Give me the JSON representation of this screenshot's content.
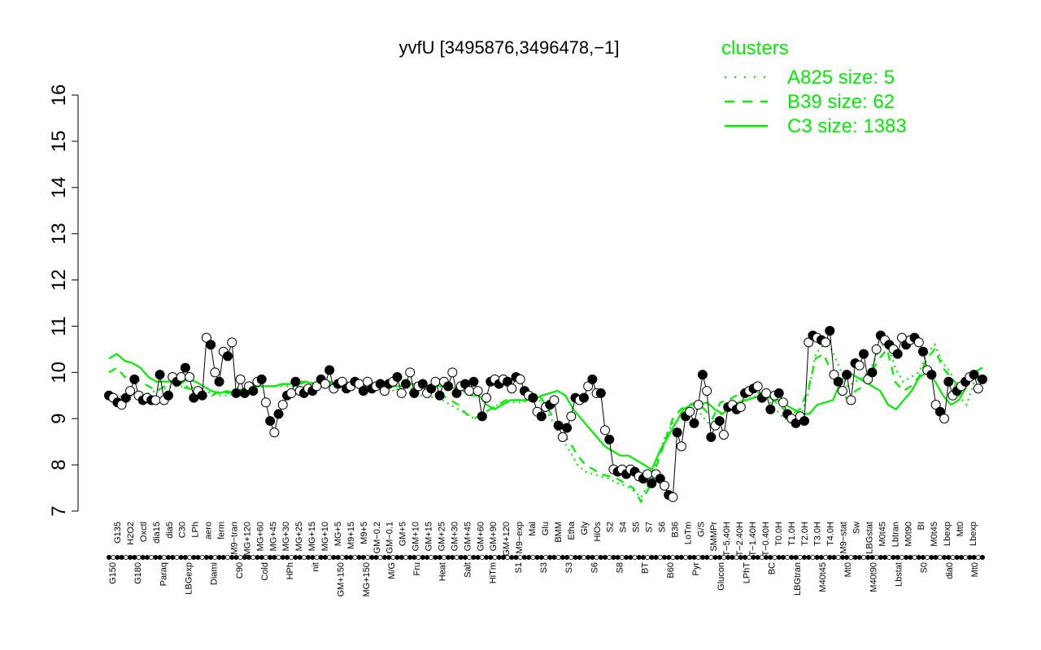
{
  "chart_data": {
    "type": "line",
    "title": "yvfU [3495876,3496478,−1]",
    "xlabel": "",
    "ylabel": "",
    "ylim": [
      7,
      16
    ],
    "yticks": [
      7,
      8,
      9,
      10,
      11,
      12,
      13,
      14,
      15,
      16
    ],
    "grid": false,
    "legend_position": "top-right",
    "legend": {
      "title": "clusters",
      "color": "#00ee00",
      "entries": [
        {
          "label": "A825 size: 5",
          "style": "dotted"
        },
        {
          "label": "B39 size: 62",
          "style": "dashed"
        },
        {
          "label": "C3 size: 1383",
          "style": "solid"
        }
      ]
    },
    "x_labels_top": [
      "G135",
      "H2O2",
      "Oxctl",
      "dia15",
      "dia5",
      "C30",
      "LPh",
      "aero",
      "ferm",
      "M9−tran",
      "MG+120",
      "MG+60",
      "MG+45",
      "MG+30",
      "MG+25",
      "MG+15",
      "MG+10",
      "MG+5",
      "M9+15",
      "M9+5",
      "GM−0.2",
      "GM−0.1",
      "GM+5",
      "GM+10",
      "GM+15",
      "GM+25",
      "GM+30",
      "GM+45",
      "GM+60",
      "GM+90",
      "GM+120",
      "M9−exp",
      "Mal",
      "Glu",
      "BMM",
      "Etha",
      "Gly",
      "HiOs",
      "S2",
      "S4",
      "S5",
      "S7",
      "S6",
      "B36",
      "LoTm",
      "G/S",
      "SMMPr",
      "T−5.40H",
      "T−2.40H",
      "T−1.40H",
      "T−0.40H",
      "T0.0H",
      "T1.0H",
      "T2.0H",
      "T3.0H",
      "T4.0H",
      "M9−stat",
      "Sw",
      "LBGstat",
      "M0t45",
      "Lbtran",
      "M0t90",
      "BI",
      "M0t45",
      "Lbexp",
      "Mt0",
      "Lbexp"
    ],
    "x_labels_bottom": [
      "G150",
      "G180",
      "Paraq",
      "LBGexp",
      "Diami",
      "C90",
      "Cold",
      "HPh",
      "nit",
      "GM+150",
      "MG+150",
      "M/G",
      "Fru",
      "Heat",
      "Salt",
      "HiTm",
      "S1",
      "S3",
      "S3",
      "S6",
      "S8",
      "BT",
      "B60",
      "Pyr",
      "Glucon",
      "LPhT",
      "BC",
      "LBGtran",
      "M40t45",
      "Mt0",
      "M40t90",
      "Lbstat",
      "S0",
      "dia0",
      "Mt0"
    ],
    "series": [
      {
        "name": "C3 size: 1383",
        "style": "solid",
        "color": "#00ee00",
        "values": [
          10.3,
          10.4,
          10.25,
          10.2,
          10.1,
          9.9,
          9.8,
          9.8,
          9.8,
          9.75,
          9.85,
          9.8,
          9.7,
          9.6,
          9.55,
          9.6,
          9.55,
          9.6,
          9.65,
          9.7,
          9.7,
          9.7,
          9.75,
          9.75,
          9.8,
          9.8,
          9.75,
          9.8,
          9.8,
          9.75,
          9.8,
          9.75,
          9.7,
          9.7,
          9.75,
          9.75,
          9.7,
          9.7,
          9.75,
          9.75,
          9.7,
          9.7,
          9.7,
          9.7,
          9.65,
          9.6,
          9.5,
          9.5,
          9.3,
          9.2,
          9.3,
          9.4,
          9.4,
          9.4,
          9.4,
          9.5,
          9.55,
          9.6,
          9.5,
          9.2,
          9.0,
          8.8,
          8.6,
          8.4,
          8.3,
          8.2,
          8.2,
          8.1,
          8.0,
          7.9,
          8.3,
          8.6,
          8.9,
          9.2,
          9.3,
          9.3,
          9.35,
          9.2,
          9.1,
          9.3,
          9.35,
          9.4,
          9.45,
          9.5,
          9.45,
          9.4,
          9.3,
          9.2,
          9.1,
          9.1,
          9.3,
          9.35,
          9.4,
          9.8,
          10.0,
          9.9,
          9.8,
          9.7,
          9.6,
          9.3,
          9.2,
          9.4,
          9.6,
          9.9,
          10.0,
          9.8,
          9.5,
          9.3,
          9.4,
          9.7,
          10.0,
          10.1
        ]
      },
      {
        "name": "B39 size: 62",
        "style": "dashed",
        "color": "#00ee00",
        "values": [
          10.0,
          10.1,
          9.9,
          9.9,
          9.8,
          9.7,
          9.6,
          9.7,
          9.8,
          9.7,
          9.65,
          9.6,
          9.55,
          9.5,
          9.6,
          9.55,
          9.6,
          9.65,
          9.7,
          9.7,
          9.7,
          9.7,
          9.75,
          9.75,
          9.75,
          9.8,
          9.75,
          9.75,
          9.75,
          9.7,
          9.75,
          9.7,
          9.65,
          9.65,
          9.7,
          9.7,
          9.65,
          9.6,
          9.65,
          9.6,
          9.6,
          9.55,
          9.5,
          9.4,
          9.3,
          9.1,
          9.0,
          9.1,
          9.2,
          9.3,
          9.4,
          9.4,
          9.4,
          9.45,
          9.55,
          9.3,
          9.0,
          8.7,
          8.5,
          8.2,
          8.0,
          7.9,
          7.8,
          7.75,
          7.7,
          7.6,
          7.5,
          7.2,
          7.5,
          8.0,
          8.5,
          9.0,
          9.2,
          9.3,
          9.35,
          9.2,
          9.0,
          9.35,
          9.4,
          9.5,
          9.55,
          9.6,
          9.55,
          9.5,
          9.35,
          9.2,
          9.1,
          9.2,
          9.6,
          10.3,
          10.4,
          10.0,
          9.7,
          9.4,
          9.6,
          9.7,
          10.0,
          10.3,
          10.5,
          9.8,
          9.6,
          9.7,
          9.9,
          10.3,
          10.5,
          10.1,
          9.9,
          9.7,
          9.8,
          10.0,
          10.1
        ]
      },
      {
        "name": "A825 size: 5",
        "style": "dotted",
        "color": "#00ee00",
        "values": [
          9.55,
          9.5,
          9.45,
          9.5,
          9.5,
          9.55,
          9.6,
          9.65,
          9.7,
          9.7,
          9.7,
          9.65,
          9.6,
          9.55,
          9.5,
          9.5,
          9.55,
          9.6,
          9.65,
          9.7,
          9.7,
          9.7,
          9.7,
          9.7,
          9.65,
          9.7,
          9.7,
          9.7,
          9.7,
          9.7,
          9.7,
          9.65,
          9.6,
          9.6,
          9.65,
          9.65,
          9.6,
          9.55,
          9.55,
          9.5,
          9.5,
          9.45,
          9.4,
          9.3,
          9.2,
          9.1,
          9.0,
          9.1,
          9.2,
          9.3,
          9.35,
          9.35,
          9.35,
          9.4,
          9.45,
          9.2,
          8.9,
          8.6,
          8.3,
          8.0,
          7.85,
          7.8,
          7.75,
          7.7,
          7.6,
          7.55,
          7.45,
          7.3,
          7.6,
          8.1,
          8.6,
          8.9,
          9.0,
          9.15,
          9.2,
          9.0,
          8.8,
          9.1,
          9.2,
          9.3,
          9.4,
          9.5,
          9.45,
          9.4,
          9.2,
          9.0,
          8.95,
          9.0,
          9.5,
          10.4,
          10.6,
          10.5,
          10.1,
          9.7,
          9.8,
          9.9,
          10.1,
          10.5,
          10.7,
          10.1,
          9.8,
          9.9,
          10.0,
          10.4,
          10.6,
          10.2,
          10.0,
          9.5,
          9.3,
          9.8,
          9.9
        ]
      }
    ],
    "points": [
      {
        "x": 0,
        "y": 9.5
      },
      {
        "x": 1,
        "y": 9.45
      },
      {
        "x": 2,
        "y": 9.35
      },
      {
        "x": 3,
        "y": 9.3
      },
      {
        "x": 4,
        "y": 9.45
      },
      {
        "x": 5,
        "y": 9.6
      },
      {
        "x": 6,
        "y": 9.85
      },
      {
        "x": 7,
        "y": 9.5
      },
      {
        "x": 8,
        "y": 9.4
      },
      {
        "x": 9,
        "y": 9.45
      },
      {
        "x": 10,
        "y": 9.4
      },
      {
        "x": 11,
        "y": 9.4
      },
      {
        "x": 12,
        "y": 9.95
      },
      {
        "x": 13,
        "y": 9.4
      },
      {
        "x": 14,
        "y": 9.5
      },
      {
        "x": 15,
        "y": 9.9
      },
      {
        "x": 16,
        "y": 9.8
      },
      {
        "x": 17,
        "y": 9.9
      },
      {
        "x": 18,
        "y": 10.1
      },
      {
        "x": 19,
        "y": 9.9
      },
      {
        "x": 20,
        "y": 9.45
      },
      {
        "x": 21,
        "y": 9.6
      },
      {
        "x": 22,
        "y": 9.5
      },
      {
        "x": 23,
        "y": 10.75
      },
      {
        "x": 24,
        "y": 10.6
      },
      {
        "x": 25,
        "y": 10.0
      },
      {
        "x": 26,
        "y": 9.8
      },
      {
        "x": 27,
        "y": 10.45
      },
      {
        "x": 28,
        "y": 10.35
      },
      {
        "x": 29,
        "y": 10.65
      },
      {
        "x": 30,
        "y": 9.55
      },
      {
        "x": 31,
        "y": 9.85
      },
      {
        "x": 32,
        "y": 9.55
      },
      {
        "x": 33,
        "y": 9.7
      },
      {
        "x": 34,
        "y": 9.6
      },
      {
        "x": 35,
        "y": 9.8
      },
      {
        "x": 36,
        "y": 9.85
      },
      {
        "x": 37,
        "y": 9.35
      },
      {
        "x": 38,
        "y": 8.95
      },
      {
        "x": 39,
        "y": 8.7
      },
      {
        "x": 40,
        "y": 9.1
      },
      {
        "x": 41,
        "y": 9.3
      },
      {
        "x": 42,
        "y": 9.5
      },
      {
        "x": 43,
        "y": 9.55
      },
      {
        "x": 44,
        "y": 9.8
      },
      {
        "x": 45,
        "y": 9.6
      },
      {
        "x": 46,
        "y": 9.55
      },
      {
        "x": 47,
        "y": 9.65
      },
      {
        "x": 48,
        "y": 9.6
      },
      {
        "x": 49,
        "y": 9.7
      },
      {
        "x": 50,
        "y": 9.85
      },
      {
        "x": 51,
        "y": 9.75
      },
      {
        "x": 52,
        "y": 10.05
      },
      {
        "x": 53,
        "y": 9.65
      },
      {
        "x": 54,
        "y": 9.75
      },
      {
        "x": 55,
        "y": 9.8
      },
      {
        "x": 56,
        "y": 9.65
      },
      {
        "x": 57,
        "y": 9.7
      },
      {
        "x": 58,
        "y": 9.8
      },
      {
        "x": 59,
        "y": 9.75
      },
      {
        "x": 60,
        "y": 9.6
      },
      {
        "x": 61,
        "y": 9.8
      },
      {
        "x": 62,
        "y": 9.65
      },
      {
        "x": 63,
        "y": 9.7
      },
      {
        "x": 64,
        "y": 9.75
      },
      {
        "x": 65,
        "y": 9.6
      },
      {
        "x": 66,
        "y": 9.75
      },
      {
        "x": 67,
        "y": 9.8
      },
      {
        "x": 68,
        "y": 9.9
      },
      {
        "x": 69,
        "y": 9.55
      },
      {
        "x": 70,
        "y": 9.75
      },
      {
        "x": 71,
        "y": 10.0
      },
      {
        "x": 72,
        "y": 9.55
      },
      {
        "x": 73,
        "y": 9.7
      },
      {
        "x": 74,
        "y": 9.75
      },
      {
        "x": 75,
        "y": 9.55
      },
      {
        "x": 76,
        "y": 9.65
      },
      {
        "x": 77,
        "y": 9.8
      },
      {
        "x": 78,
        "y": 9.5
      },
      {
        "x": 79,
        "y": 9.8
      },
      {
        "x": 80,
        "y": 9.7
      },
      {
        "x": 81,
        "y": 10.0
      },
      {
        "x": 82,
        "y": 9.55
      },
      {
        "x": 83,
        "y": 9.7
      },
      {
        "x": 84,
        "y": 9.75
      },
      {
        "x": 85,
        "y": 9.6
      },
      {
        "x": 86,
        "y": 9.8
      },
      {
        "x": 87,
        "y": 9.6
      },
      {
        "x": 88,
        "y": 9.05
      },
      {
        "x": 89,
        "y": 9.45
      },
      {
        "x": 90,
        "y": 9.8
      },
      {
        "x": 91,
        "y": 9.85
      },
      {
        "x": 92,
        "y": 9.75
      },
      {
        "x": 93,
        "y": 9.85
      },
      {
        "x": 94,
        "y": 9.8
      },
      {
        "x": 95,
        "y": 9.65
      },
      {
        "x": 96,
        "y": 9.9
      },
      {
        "x": 97,
        "y": 9.85
      },
      {
        "x": 98,
        "y": 9.6
      },
      {
        "x": 99,
        "y": 9.5
      },
      {
        "x": 100,
        "y": 9.45
      },
      {
        "x": 101,
        "y": 9.15
      },
      {
        "x": 102,
        "y": 9.05
      },
      {
        "x": 103,
        "y": 9.25
      },
      {
        "x": 104,
        "y": 9.3
      },
      {
        "x": 105,
        "y": 9.4
      },
      {
        "x": 106,
        "y": 8.85
      },
      {
        "x": 107,
        "y": 8.6
      },
      {
        "x": 108,
        "y": 8.8
      },
      {
        "x": 109,
        "y": 9.05
      },
      {
        "x": 110,
        "y": 9.45
      },
      {
        "x": 111,
        "y": 9.4
      },
      {
        "x": 112,
        "y": 9.45
      },
      {
        "x": 113,
        "y": 9.7
      },
      {
        "x": 114,
        "y": 9.85
      },
      {
        "x": 115,
        "y": 9.55
      },
      {
        "x": 116,
        "y": 9.55
      },
      {
        "x": 117,
        "y": 8.75
      },
      {
        "x": 118,
        "y": 8.55
      },
      {
        "x": 119,
        "y": 7.9
      },
      {
        "x": 120,
        "y": 7.85
      },
      {
        "x": 121,
        "y": 7.9
      },
      {
        "x": 122,
        "y": 7.8
      },
      {
        "x": 123,
        "y": 7.9
      },
      {
        "x": 124,
        "y": 7.85
      },
      {
        "x": 125,
        "y": 7.75
      },
      {
        "x": 126,
        "y": 7.7
      },
      {
        "x": 127,
        "y": 7.8
      },
      {
        "x": 128,
        "y": 7.6
      },
      {
        "x": 129,
        "y": 7.8
      },
      {
        "x": 130,
        "y": 7.7
      },
      {
        "x": 131,
        "y": 7.55
      },
      {
        "x": 132,
        "y": 7.35
      },
      {
        "x": 133,
        "y": 7.3
      },
      {
        "x": 134,
        "y": 8.7
      },
      {
        "x": 135,
        "y": 8.4
      },
      {
        "x": 136,
        "y": 9.05
      },
      {
        "x": 137,
        "y": 9.15
      },
      {
        "x": 138,
        "y": 8.9
      },
      {
        "x": 139,
        "y": 9.3
      },
      {
        "x": 140,
        "y": 9.95
      },
      {
        "x": 141,
        "y": 9.6
      },
      {
        "x": 142,
        "y": 8.6
      },
      {
        "x": 143,
        "y": 8.85
      },
      {
        "x": 144,
        "y": 8.95
      },
      {
        "x": 145,
        "y": 8.65
      },
      {
        "x": 146,
        "y": 9.25
      },
      {
        "x": 147,
        "y": 9.3
      },
      {
        "x": 148,
        "y": 9.2
      },
      {
        "x": 149,
        "y": 9.25
      },
      {
        "x": 150,
        "y": 9.55
      },
      {
        "x": 151,
        "y": 9.6
      },
      {
        "x": 152,
        "y": 9.65
      },
      {
        "x": 153,
        "y": 9.7
      },
      {
        "x": 154,
        "y": 9.45
      },
      {
        "x": 155,
        "y": 9.55
      },
      {
        "x": 156,
        "y": 9.2
      },
      {
        "x": 157,
        "y": 9.5
      },
      {
        "x": 158,
        "y": 9.55
      },
      {
        "x": 159,
        "y": 9.35
      },
      {
        "x": 160,
        "y": 9.1
      },
      {
        "x": 161,
        "y": 9.0
      },
      {
        "x": 162,
        "y": 8.9
      },
      {
        "x": 163,
        "y": 9.05
      },
      {
        "x": 164,
        "y": 8.95
      },
      {
        "x": 165,
        "y": 10.65
      },
      {
        "x": 166,
        "y": 10.8
      },
      {
        "x": 167,
        "y": 10.75
      },
      {
        "x": 168,
        "y": 10.7
      },
      {
        "x": 169,
        "y": 10.65
      },
      {
        "x": 170,
        "y": 10.9
      },
      {
        "x": 171,
        "y": 9.95
      },
      {
        "x": 172,
        "y": 9.8
      },
      {
        "x": 173,
        "y": 9.6
      },
      {
        "x": 174,
        "y": 9.95
      },
      {
        "x": 175,
        "y": 9.4
      },
      {
        "x": 176,
        "y": 10.2
      },
      {
        "x": 177,
        "y": 10.15
      },
      {
        "x": 178,
        "y": 10.4
      },
      {
        "x": 179,
        "y": 9.85
      },
      {
        "x": 180,
        "y": 10.0
      },
      {
        "x": 181,
        "y": 10.5
      },
      {
        "x": 182,
        "y": 10.8
      },
      {
        "x": 183,
        "y": 10.7
      },
      {
        "x": 184,
        "y": 10.6
      },
      {
        "x": 185,
        "y": 10.5
      },
      {
        "x": 186,
        "y": 10.4
      },
      {
        "x": 187,
        "y": 10.75
      },
      {
        "x": 188,
        "y": 10.6
      },
      {
        "x": 189,
        "y": 10.7
      },
      {
        "x": 190,
        "y": 10.75
      },
      {
        "x": 191,
        "y": 10.65
      },
      {
        "x": 192,
        "y": 10.45
      },
      {
        "x": 193,
        "y": 10.05
      },
      {
        "x": 194,
        "y": 9.95
      },
      {
        "x": 195,
        "y": 9.3
      },
      {
        "x": 196,
        "y": 9.15
      },
      {
        "x": 197,
        "y": 9.0
      },
      {
        "x": 198,
        "y": 9.8
      },
      {
        "x": 199,
        "y": 9.5
      },
      {
        "x": 200,
        "y": 9.6
      },
      {
        "x": 201,
        "y": 9.7
      },
      {
        "x": 202,
        "y": 9.8
      },
      {
        "x": 203,
        "y": 9.9
      },
      {
        "x": 204,
        "y": 9.95
      },
      {
        "x": 205,
        "y": 9.65
      },
      {
        "x": 206,
        "y": 9.85
      }
    ]
  }
}
